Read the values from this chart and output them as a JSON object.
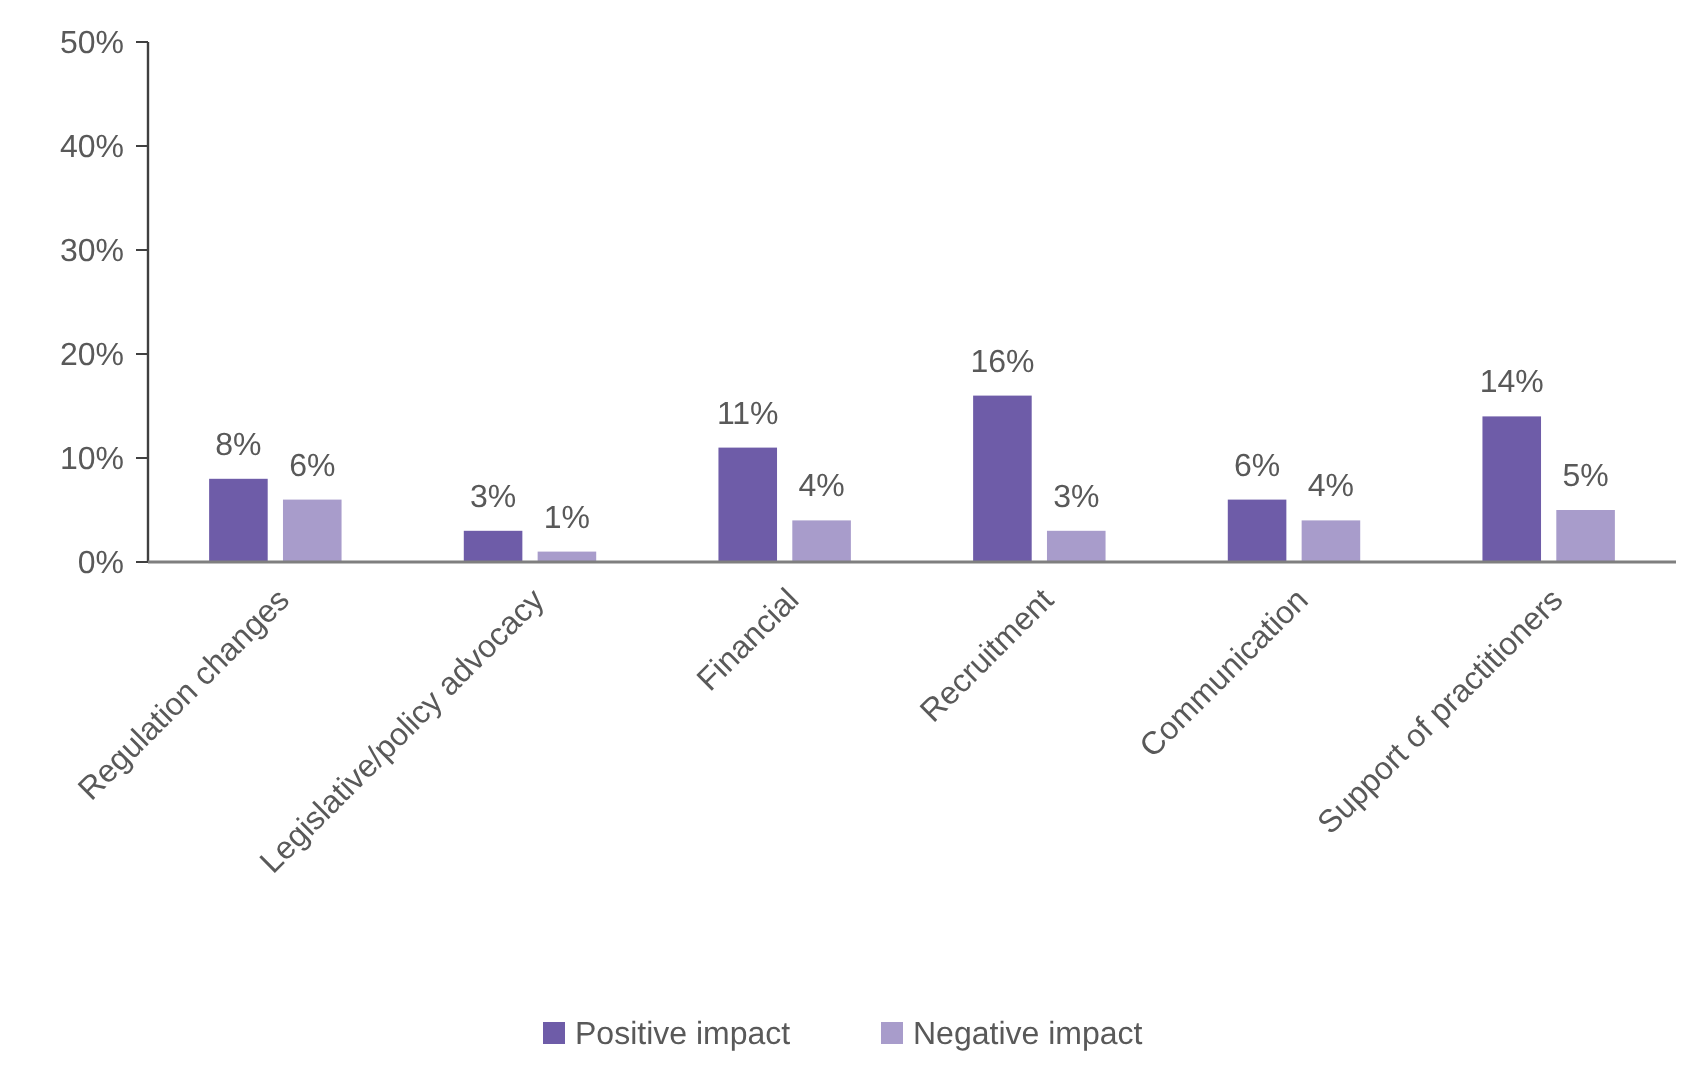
{
  "chart_data": {
    "type": "bar",
    "categories": [
      "Regulation changes",
      "Legislative/policy advocacy",
      "Financial",
      "Recruitment",
      "Communication",
      "Support of practitioners"
    ],
    "series": [
      {
        "name": "Positive impact",
        "color": "#6e5ca8",
        "values": [
          8,
          3,
          11,
          16,
          6,
          14
        ],
        "value_labels": [
          "8%",
          "3%",
          "11%",
          "16%",
          "6%",
          "14%"
        ]
      },
      {
        "name": "Negative impact",
        "color": "#a89ccb",
        "values": [
          6,
          1,
          4,
          3,
          4,
          5
        ],
        "value_labels": [
          "6%",
          "1%",
          "4%",
          "3%",
          "4%",
          "5%"
        ]
      }
    ],
    "ylim": [
      0,
      50
    ],
    "yticks": [
      {
        "value": 0,
        "label": "0%"
      },
      {
        "value": 10,
        "label": "10%"
      },
      {
        "value": 20,
        "label": "20%"
      },
      {
        "value": 30,
        "label": "30%"
      },
      {
        "value": 40,
        "label": "40%"
      },
      {
        "value": 50,
        "label": "50%"
      }
    ],
    "legend": "bottom"
  }
}
